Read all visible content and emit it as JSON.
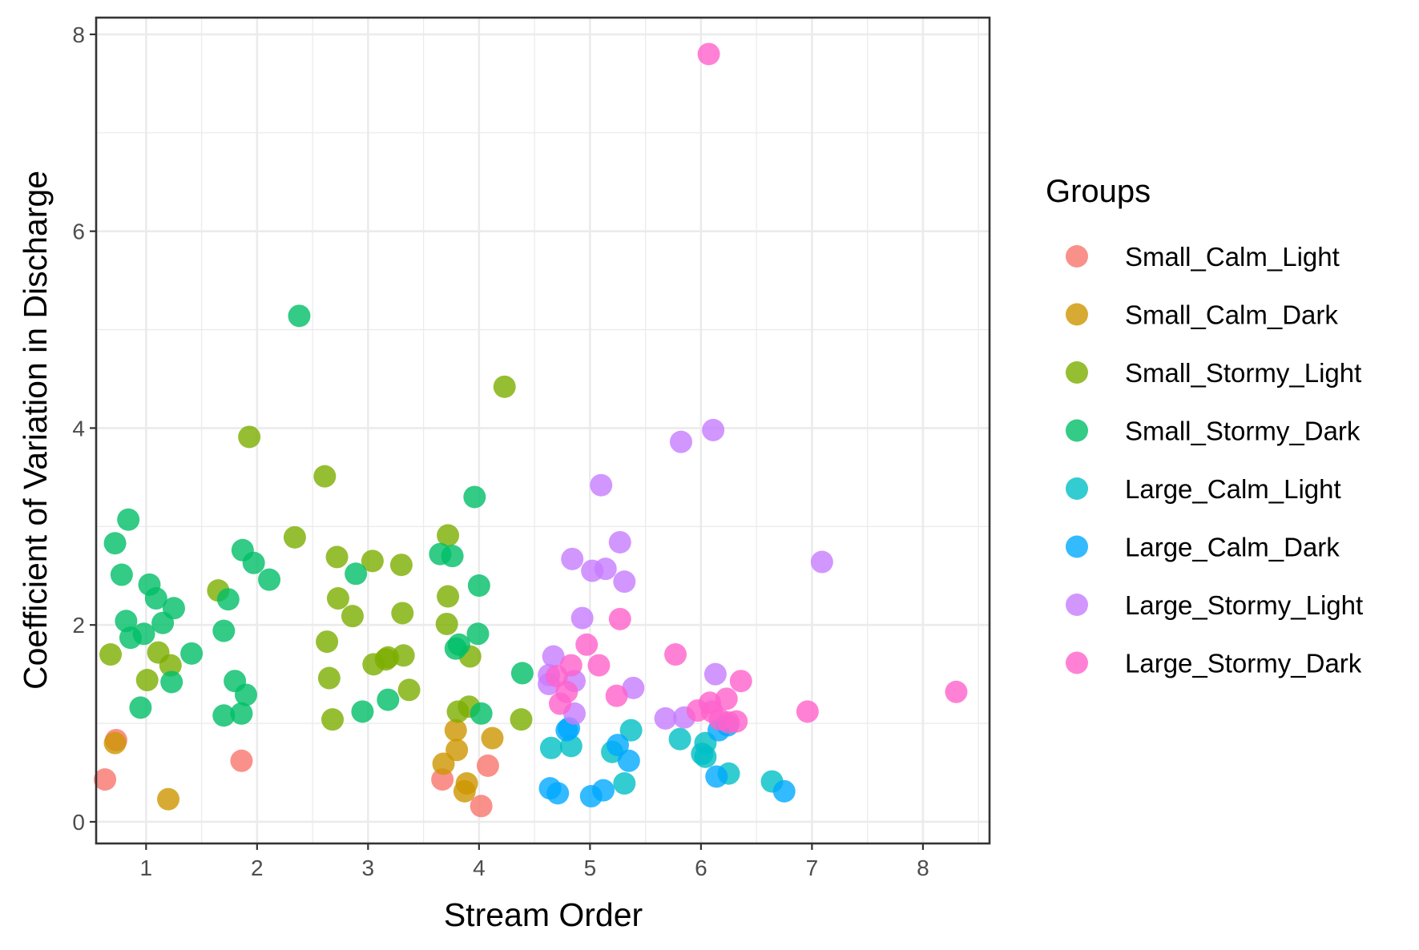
{
  "chart_data": {
    "type": "scatter",
    "title": "",
    "xlabel": "Stream Order",
    "ylabel": "Coefficient of Variation in Discharge",
    "xlim": [
      0.55,
      8.6
    ],
    "ylim": [
      -0.22,
      8.17
    ],
    "x_ticks": [
      1,
      2,
      3,
      4,
      5,
      6,
      7,
      8
    ],
    "y_ticks": [
      0,
      2,
      4,
      6,
      8
    ],
    "grid": true,
    "legend": {
      "title": "Groups",
      "position": "right"
    },
    "series": [
      {
        "name": "Small_Calm_Light",
        "color": "#F8766D",
        "points": [
          [
            0.63,
            0.43
          ],
          [
            0.73,
            0.83
          ],
          [
            1.86,
            0.62
          ],
          [
            3.67,
            0.43
          ],
          [
            4.08,
            0.57
          ],
          [
            4.02,
            0.16
          ]
        ]
      },
      {
        "name": "Small_Calm_Dark",
        "color": "#CD9600",
        "points": [
          [
            0.72,
            0.8
          ],
          [
            1.2,
            0.23
          ],
          [
            3.68,
            0.59
          ],
          [
            3.79,
            0.93
          ],
          [
            3.8,
            0.73
          ],
          [
            3.87,
            0.31
          ],
          [
            3.89,
            0.39
          ],
          [
            4.12,
            0.85
          ]
        ]
      },
      {
        "name": "Small_Stormy_Light",
        "color": "#7CAE00",
        "points": [
          [
            0.68,
            1.7
          ],
          [
            1.01,
            1.44
          ],
          [
            1.11,
            1.72
          ],
          [
            1.22,
            1.59
          ],
          [
            1.65,
            2.35
          ],
          [
            1.93,
            3.91
          ],
          [
            2.34,
            2.89
          ],
          [
            2.61,
            3.51
          ],
          [
            2.63,
            1.83
          ],
          [
            2.65,
            1.46
          ],
          [
            2.68,
            1.04
          ],
          [
            2.72,
            2.69
          ],
          [
            2.73,
            2.27
          ],
          [
            2.86,
            2.09
          ],
          [
            3.04,
            2.65
          ],
          [
            3.05,
            1.6
          ],
          [
            3.16,
            1.65
          ],
          [
            3.18,
            1.67
          ],
          [
            3.3,
            2.61
          ],
          [
            3.31,
            2.12
          ],
          [
            3.32,
            1.69
          ],
          [
            3.37,
            1.34
          ],
          [
            3.72,
            2.91
          ],
          [
            3.72,
            2.29
          ],
          [
            3.71,
            2.01
          ],
          [
            3.81,
            1.12
          ],
          [
            3.92,
            1.68
          ],
          [
            3.91,
            1.17
          ],
          [
            4.23,
            4.42
          ],
          [
            4.38,
            1.04
          ]
        ]
      },
      {
        "name": "Small_Stormy_Dark",
        "color": "#00BE67",
        "points": [
          [
            0.72,
            2.83
          ],
          [
            0.78,
            2.51
          ],
          [
            0.84,
            3.07
          ],
          [
            0.82,
            2.04
          ],
          [
            0.86,
            1.87
          ],
          [
            0.95,
            1.16
          ],
          [
            0.98,
            1.91
          ],
          [
            1.03,
            2.41
          ],
          [
            1.09,
            2.27
          ],
          [
            1.15,
            2.02
          ],
          [
            1.23,
            1.42
          ],
          [
            1.25,
            2.17
          ],
          [
            1.41,
            1.71
          ],
          [
            1.7,
            1.94
          ],
          [
            1.74,
            2.26
          ],
          [
            1.7,
            1.08
          ],
          [
            1.8,
            1.43
          ],
          [
            1.86,
            1.1
          ],
          [
            1.87,
            2.76
          ],
          [
            1.9,
            1.29
          ],
          [
            1.97,
            2.63
          ],
          [
            2.11,
            2.46
          ],
          [
            2.38,
            5.14
          ],
          [
            2.89,
            2.52
          ],
          [
            2.95,
            1.12
          ],
          [
            3.18,
            1.24
          ],
          [
            3.65,
            2.72
          ],
          [
            3.76,
            2.7
          ],
          [
            3.79,
            1.76
          ],
          [
            3.82,
            1.8
          ],
          [
            3.96,
            3.3
          ],
          [
            3.99,
            1.91
          ],
          [
            4.0,
            2.4
          ],
          [
            4.02,
            1.1
          ],
          [
            4.39,
            1.51
          ]
        ]
      },
      {
        "name": "Large_Calm_Light",
        "color": "#00BFC4",
        "points": [
          [
            4.65,
            0.75
          ],
          [
            4.83,
            0.77
          ],
          [
            5.2,
            0.71
          ],
          [
            5.31,
            0.39
          ],
          [
            5.37,
            0.93
          ],
          [
            5.81,
            0.84
          ],
          [
            6.01,
            0.69
          ],
          [
            6.04,
            0.66
          ],
          [
            6.04,
            0.8
          ],
          [
            6.25,
            0.49
          ],
          [
            6.64,
            0.41
          ]
        ]
      },
      {
        "name": "Large_Calm_Dark",
        "color": "#00A9FF",
        "points": [
          [
            4.64,
            0.34
          ],
          [
            4.71,
            0.29
          ],
          [
            4.79,
            0.93
          ],
          [
            4.81,
            0.95
          ],
          [
            5.01,
            0.26
          ],
          [
            5.12,
            0.32
          ],
          [
            5.25,
            0.78
          ],
          [
            5.35,
            0.62
          ],
          [
            6.14,
            0.46
          ],
          [
            6.16,
            0.93
          ],
          [
            6.24,
            0.98
          ],
          [
            6.75,
            0.31
          ]
        ]
      },
      {
        "name": "Large_Stormy_Light",
        "color": "#C77CFF",
        "points": [
          [
            4.63,
            1.49
          ],
          [
            4.63,
            1.4
          ],
          [
            4.67,
            1.68
          ],
          [
            4.84,
            2.67
          ],
          [
            4.86,
            1.43
          ],
          [
            4.86,
            1.1
          ],
          [
            4.93,
            2.07
          ],
          [
            5.02,
            2.55
          ],
          [
            5.1,
            3.42
          ],
          [
            5.14,
            2.57
          ],
          [
            5.27,
            2.84
          ],
          [
            5.31,
            2.44
          ],
          [
            5.39,
            1.36
          ],
          [
            5.68,
            1.05
          ],
          [
            5.82,
            3.86
          ],
          [
            5.85,
            1.06
          ],
          [
            6.11,
            3.98
          ],
          [
            6.13,
            1.5
          ],
          [
            7.09,
            2.64
          ]
        ]
      },
      {
        "name": "Large_Stormy_Dark",
        "color": "#FF61CC",
        "points": [
          [
            4.7,
            1.48
          ],
          [
            4.73,
            1.2
          ],
          [
            4.79,
            1.32
          ],
          [
            4.83,
            1.59
          ],
          [
            4.97,
            1.8
          ],
          [
            5.08,
            1.59
          ],
          [
            5.24,
            1.28
          ],
          [
            5.27,
            2.06
          ],
          [
            5.77,
            1.7
          ],
          [
            5.97,
            1.13
          ],
          [
            6.07,
            7.8
          ],
          [
            6.08,
            1.21
          ],
          [
            6.1,
            1.12
          ],
          [
            6.17,
            1.04
          ],
          [
            6.23,
            1.25
          ],
          [
            6.25,
            1.01
          ],
          [
            6.32,
            1.02
          ],
          [
            6.36,
            1.43
          ],
          [
            6.96,
            1.12
          ],
          [
            8.3,
            1.32
          ]
        ]
      }
    ]
  }
}
